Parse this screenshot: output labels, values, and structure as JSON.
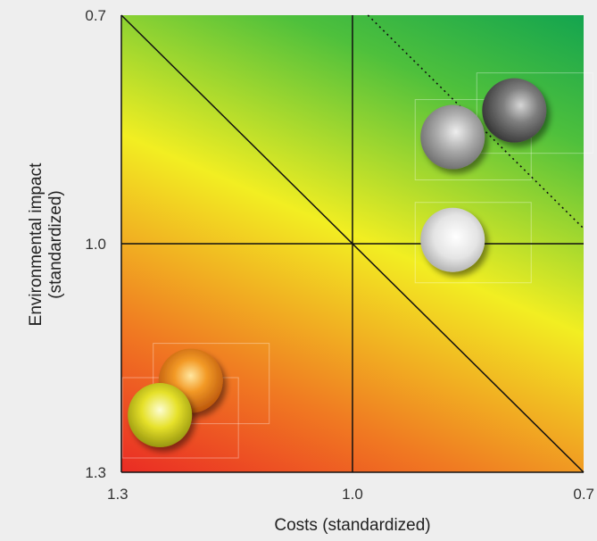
{
  "chart_data": {
    "type": "scatter",
    "title": "",
    "xlabel": "Costs (standardized)",
    "ylabel_lines": [
      "Environmental impact",
      "(standardized)"
    ],
    "xlim": [
      1.3,
      0.7
    ],
    "ylim": [
      1.3,
      0.7
    ],
    "x_ticks": [
      {
        "value": 1.3,
        "label": "1.3"
      },
      {
        "value": 1.0,
        "label": "1.0"
      },
      {
        "value": 0.7,
        "label": "0.7"
      }
    ],
    "y_ticks": [
      {
        "value": 0.7,
        "label": "0.7"
      },
      {
        "value": 1.0,
        "label": "1.0"
      },
      {
        "value": 1.3,
        "label": "1.3"
      }
    ],
    "reference_lines": [
      {
        "kind": "vertical",
        "x": 1.0,
        "style": "solid"
      },
      {
        "kind": "horizontal",
        "y": 1.0,
        "style": "solid"
      },
      {
        "kind": "diagonal",
        "from": [
          1.3,
          0.7
        ],
        "to": [
          0.7,
          1.3
        ],
        "style": "solid"
      },
      {
        "kind": "diagonal",
        "from": [
          0.98,
          0.7
        ],
        "to": [
          0.7,
          0.98
        ],
        "style": "dotted"
      }
    ],
    "background": "gradient from green (upper right) through yellow to red (lower left)",
    "points": [
      {
        "x": 0.79,
        "y": 0.825,
        "color": "dark-gray"
      },
      {
        "x": 0.87,
        "y": 0.86,
        "color": "gray"
      },
      {
        "x": 0.87,
        "y": 0.995,
        "color": "white"
      },
      {
        "x": 1.21,
        "y": 1.18,
        "color": "orange"
      },
      {
        "x": 1.25,
        "y": 1.225,
        "color": "yellow"
      }
    ],
    "grid": false,
    "legend": "none"
  },
  "colors": {
    "green": "#0fa050",
    "yellow": "#f2ee22",
    "orange": "#f07a22",
    "red": "#ea2a24",
    "line": "#111111"
  }
}
